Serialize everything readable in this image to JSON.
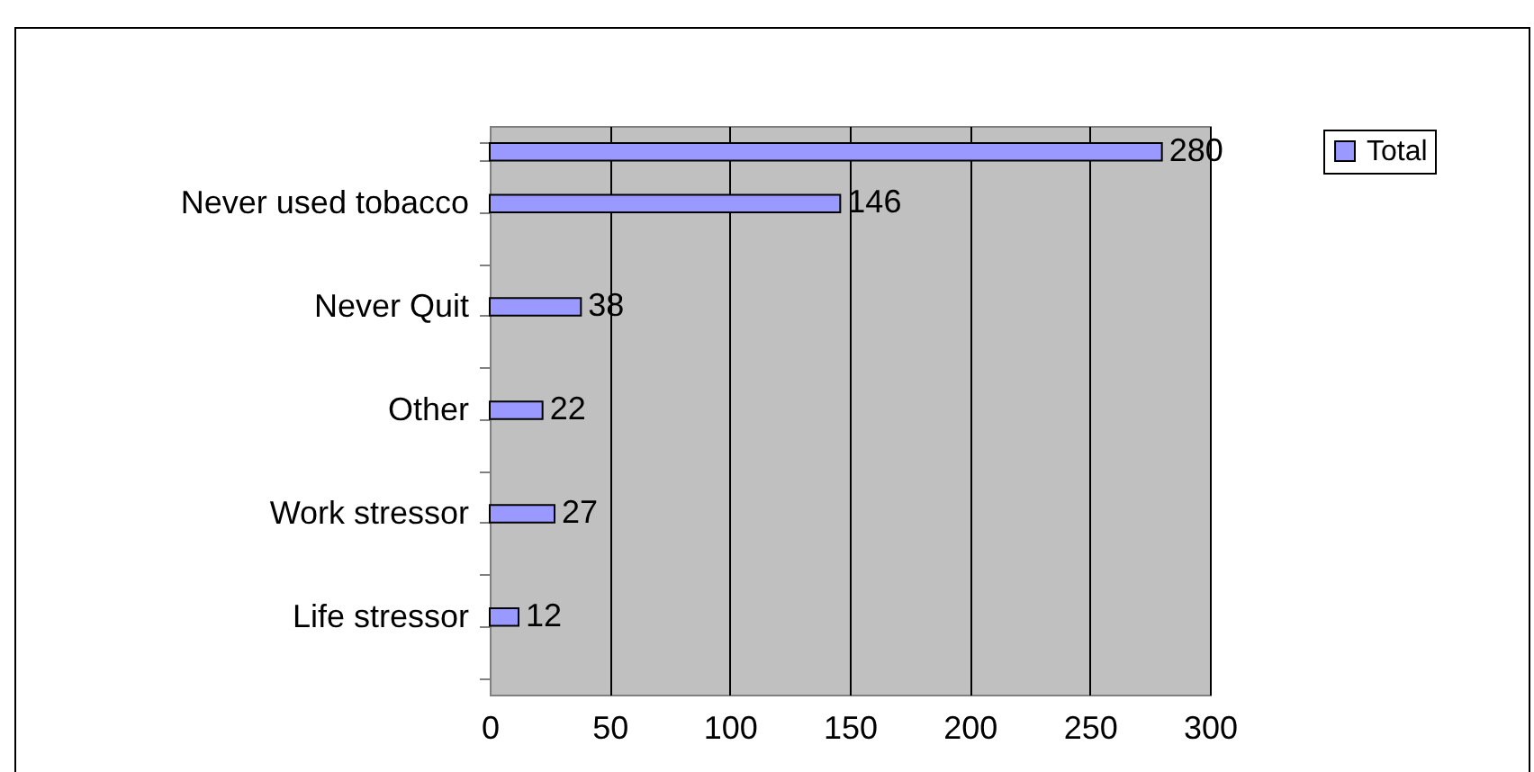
{
  "chart_data": {
    "type": "bar",
    "orientation": "horizontal",
    "categories": [
      null,
      "Never used tobacco",
      null,
      "Never Quit",
      null,
      "Other",
      null,
      "Work stressor",
      null,
      "Life stressor",
      null
    ],
    "series": [
      {
        "name": "Total",
        "color": "#9999ff",
        "values": [
          280,
          146,
          null,
          38,
          null,
          22,
          null,
          27,
          null,
          12,
          null
        ]
      }
    ],
    "xlim": [
      0,
      300
    ],
    "xticks": [
      0,
      50,
      100,
      150,
      200,
      250,
      300
    ],
    "grid": "x",
    "legend": "top right",
    "data_labels": true
  }
}
